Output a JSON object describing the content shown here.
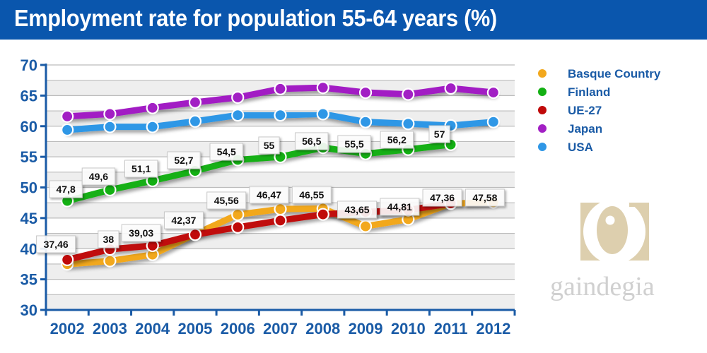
{
  "header": {
    "title": "Employment rate for population 55-64 years (%)"
  },
  "chart_data": {
    "type": "line",
    "title": "Employment rate for population 55-64 years (%)",
    "xlabel": "",
    "ylabel": "",
    "x": [
      "2002",
      "2003",
      "2004",
      "2005",
      "2006",
      "2007",
      "2008",
      "2009",
      "2010",
      "2011",
      "2012"
    ],
    "ylim": [
      30,
      70
    ],
    "yticks": [
      30,
      35,
      40,
      45,
      50,
      55,
      60,
      65,
      70
    ],
    "grid": true,
    "legend_position": "right",
    "series": [
      {
        "name": "Basque Country",
        "color": "#f2a81d",
        "values": [
          37.46,
          38,
          39.03,
          42.37,
          45.56,
          46.47,
          46.55,
          43.65,
          44.81,
          47.36,
          47.58
        ],
        "labels": [
          "37,46",
          "38",
          "39,03",
          "42,37",
          "45,56",
          "46,47",
          "46,55",
          "43,65",
          "44,81",
          "47,36",
          "47,58"
        ]
      },
      {
        "name": "Finland",
        "color": "#13b013",
        "values": [
          47.8,
          49.6,
          51.1,
          52.7,
          54.5,
          55,
          56.5,
          55.5,
          56.2,
          57,
          null
        ],
        "labels": [
          "47,8",
          "49,6",
          "51,1",
          "52,7",
          "54,5",
          "55",
          "56,5",
          "55,5",
          "56,2",
          "57",
          null
        ]
      },
      {
        "name": "UE-27",
        "color": "#c00a0a",
        "values": [
          38.2,
          39.9,
          40.5,
          42.3,
          43.5,
          44.6,
          45.6,
          46.0,
          46.3,
          47.4,
          null
        ],
        "labels": []
      },
      {
        "name": "Japan",
        "color": "#a21fc4",
        "values": [
          61.6,
          62.0,
          63.0,
          63.9,
          64.7,
          66.1,
          66.3,
          65.5,
          65.2,
          66.2,
          65.5
        ],
        "labels": []
      },
      {
        "name": "USA",
        "color": "#2f97e6",
        "values": [
          59.4,
          59.9,
          59.9,
          60.8,
          61.8,
          61.8,
          62.0,
          60.7,
          60.4,
          60.1,
          60.7
        ],
        "labels": []
      }
    ],
    "legend_order": [
      "Basque Country",
      "Finland",
      "UE-27",
      "Japan",
      "USA"
    ]
  },
  "logo": {
    "text": "gaindegia"
  }
}
